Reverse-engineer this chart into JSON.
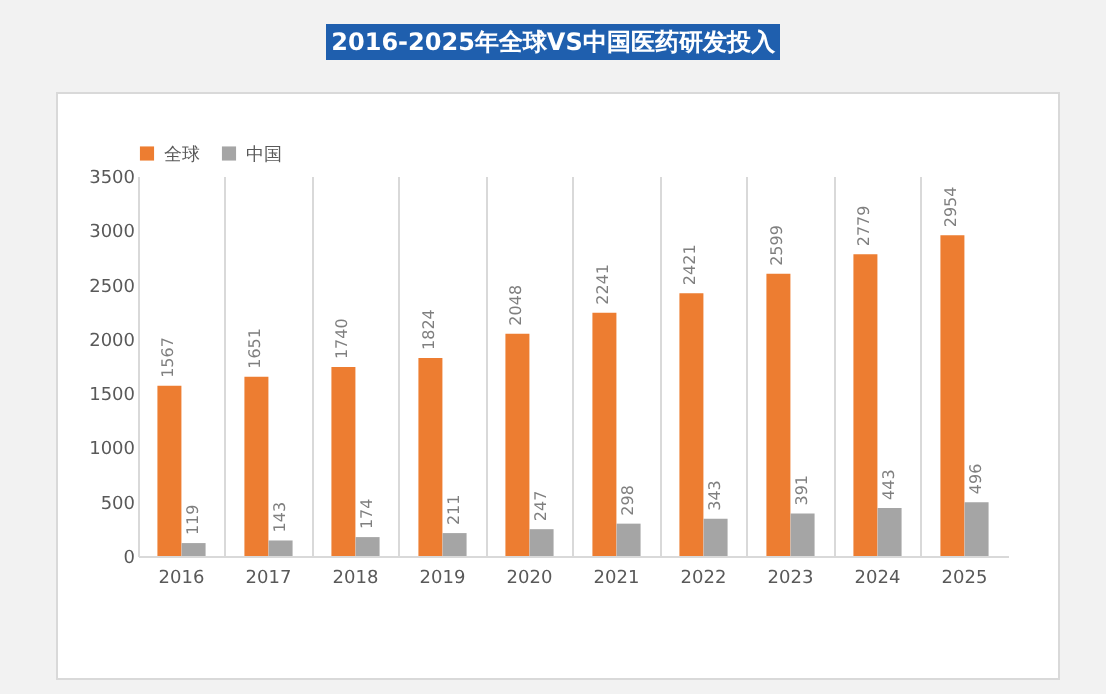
{
  "chart_data": {
    "type": "bar",
    "title": "2016-2025年全球VS中国医药研发投入",
    "categories": [
      "2016",
      "2017",
      "2018",
      "2019",
      "2020",
      "2021",
      "2022",
      "2023",
      "2024",
      "2025"
    ],
    "series": [
      {
        "name": "全球",
        "color": "#ed7d31",
        "values": [
          1567,
          1651,
          1740,
          1824,
          2048,
          2241,
          2421,
          2599,
          2779,
          2954
        ]
      },
      {
        "name": "中国",
        "color": "#a5a5a5",
        "values": [
          119,
          143,
          174,
          211,
          247,
          298,
          343,
          391,
          443,
          496
        ]
      }
    ],
    "ylim": [
      0,
      3500
    ],
    "yticks": [
      0,
      500,
      1000,
      1500,
      2000,
      2500,
      3000,
      3500
    ],
    "grid": "x",
    "legend": "top",
    "data_labels": true
  }
}
